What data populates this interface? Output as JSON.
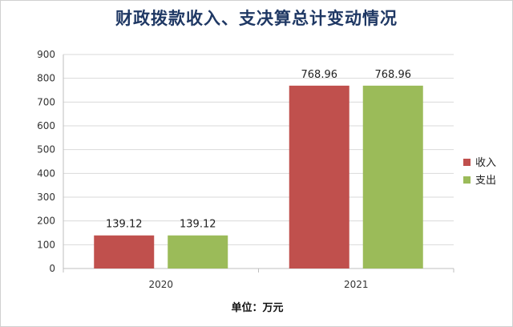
{
  "chart_data": {
    "type": "bar",
    "title": "财政拨款收入、支决算总计变动情况",
    "categories": [
      "2020",
      "2021"
    ],
    "series": [
      {
        "name": "收入",
        "values": [
          139.12,
          768.96
        ],
        "color": "#c0504d"
      },
      {
        "name": "支出",
        "values": [
          139.12,
          768.96
        ],
        "color": "#9bbb59"
      }
    ],
    "data_labels": [
      [
        "139.12",
        "768.96"
      ],
      [
        "139.12",
        "768.96"
      ]
    ],
    "ylim": [
      0,
      900
    ],
    "yticks": [
      0,
      100,
      200,
      300,
      400,
      500,
      600,
      700,
      800,
      900
    ],
    "xlabel": "单位：万元",
    "ylabel": "",
    "grid": true,
    "legend_position": "right",
    "axis_color": "#bfbfbf",
    "grid_color": "#d9d9d9"
  }
}
